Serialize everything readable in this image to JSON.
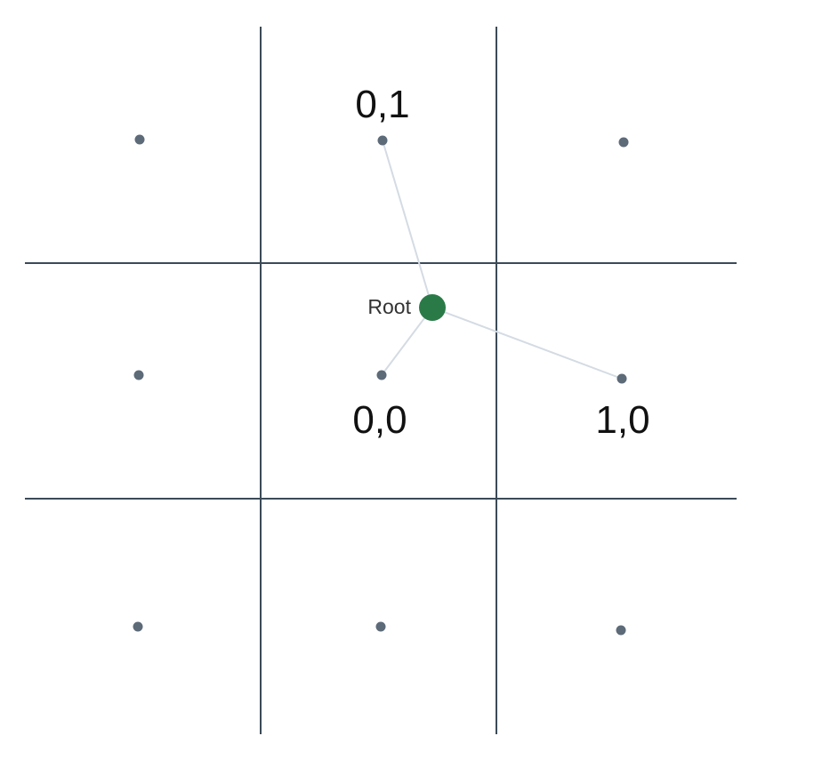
{
  "diagram": {
    "root": {
      "label": "Root",
      "color": "#2a7a48"
    },
    "labels": {
      "cell_0_1": "0,1",
      "cell_0_0": "0,0",
      "cell_1_0": "1,0"
    },
    "colors": {
      "grid": "#3b4a57",
      "point": "#5d6a78",
      "connector": "#d4dbe3"
    }
  }
}
